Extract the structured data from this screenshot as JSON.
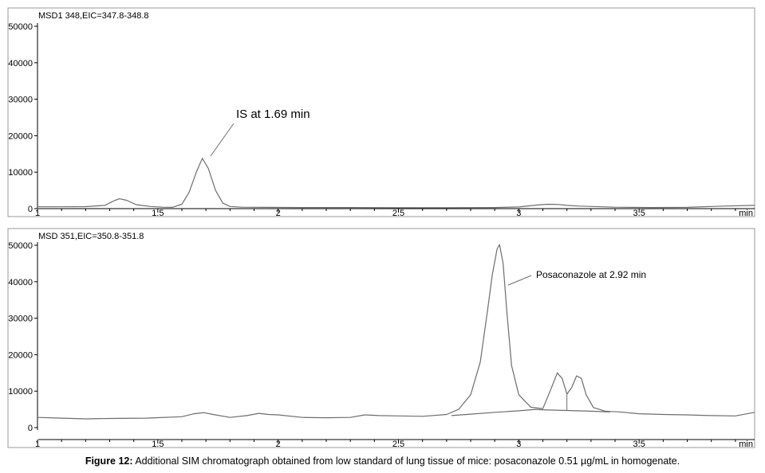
{
  "chart_data": [
    {
      "type": "line",
      "panel_label": "MSD1 348,EIC=347.8-348.8",
      "x_unit": "min",
      "xlim": [
        1,
        3.98
      ],
      "ylim": [
        0,
        52000
      ],
      "x_ticks": [
        "1",
        "1.5",
        "2",
        "2.5",
        "3",
        "3.5"
      ],
      "y_ticks": [
        "0",
        "10000",
        "20000",
        "30000",
        "40000",
        "50000"
      ],
      "annotation": "IS at 1.69 min",
      "series": [
        {
          "x": [
            1.0,
            1.1,
            1.2,
            1.28,
            1.32,
            1.34,
            1.37,
            1.41,
            1.47,
            1.52,
            1.56,
            1.6,
            1.63,
            1.66,
            1.685,
            1.71,
            1.74,
            1.77,
            1.8,
            1.85,
            1.95,
            2.1,
            2.3,
            2.5,
            2.7,
            2.9,
            3.0,
            3.08,
            3.12,
            3.16,
            3.2,
            3.25,
            3.4,
            3.55,
            3.7,
            3.85,
            3.98
          ],
          "y": [
            500,
            500,
            550,
            900,
            2200,
            2700,
            2300,
            1100,
            600,
            400,
            350,
            1200,
            4500,
            10000,
            13800,
            11000,
            5000,
            1500,
            600,
            400,
            350,
            300,
            300,
            250,
            250,
            300,
            450,
            1000,
            1200,
            1150,
            900,
            700,
            400,
            300,
            350,
            700,
            900
          ]
        }
      ]
    },
    {
      "type": "line",
      "panel_label": "MSD 351,EIC=350.8-351.8",
      "x_unit": "min",
      "xlim": [
        1,
        3.98
      ],
      "ylim": [
        0,
        52000
      ],
      "x_ticks": [
        "1",
        "1.5",
        "2",
        "2.5",
        "3",
        "3.5"
      ],
      "y_ticks": [
        "0",
        "10000",
        "20000",
        "30000",
        "40000",
        "50000"
      ],
      "annotation": "Posaconazole at 2.92 min",
      "series": [
        {
          "x": [
            1.0,
            1.1,
            1.2,
            1.3,
            1.45,
            1.6,
            1.65,
            1.69,
            1.73,
            1.8,
            1.87,
            1.92,
            1.96,
            2.0,
            2.1,
            2.2,
            2.3,
            2.36,
            2.42,
            2.5,
            2.6,
            2.7,
            2.75,
            2.8,
            2.84,
            2.87,
            2.89,
            2.91,
            2.92,
            2.935,
            2.95,
            2.97,
            3.0,
            3.05,
            3.1,
            3.13,
            3.16,
            3.18,
            3.2,
            3.22,
            3.24,
            3.26,
            3.28,
            3.31,
            3.36,
            3.42,
            3.5,
            3.6,
            3.7,
            3.8,
            3.9,
            3.98
          ],
          "y": [
            2800,
            2600,
            2400,
            2500,
            2600,
            3000,
            3800,
            4100,
            3600,
            2800,
            3300,
            3900,
            3600,
            3500,
            2800,
            2700,
            2800,
            3500,
            3300,
            3200,
            3100,
            3600,
            5000,
            9000,
            18000,
            32000,
            42000,
            49000,
            50200,
            45000,
            32000,
            17000,
            9000,
            5600,
            5200,
            10000,
            15000,
            13500,
            9200,
            11000,
            14200,
            13500,
            9000,
            5500,
            4500,
            4300,
            3800,
            3600,
            3500,
            3300,
            3200,
            4200
          ]
        },
        {
          "x": [
            2.72,
            2.8,
            2.9,
            3.0,
            3.07,
            3.1,
            3.2,
            3.3,
            3.38
          ],
          "y": [
            3300,
            3700,
            4200,
            4600,
            5000,
            4900,
            4700,
            4500,
            4300
          ]
        }
      ]
    }
  ],
  "caption": {
    "bold": "Figure 12:",
    "text": " Additional SIM chromatograph obtained from low standard of lung tissue of mice: posaconazole 0.51 µg/mL in homogenate."
  },
  "colors": {
    "trace": "#6d6d6d",
    "frame": "#9a9a9a",
    "text": "#000000"
  }
}
